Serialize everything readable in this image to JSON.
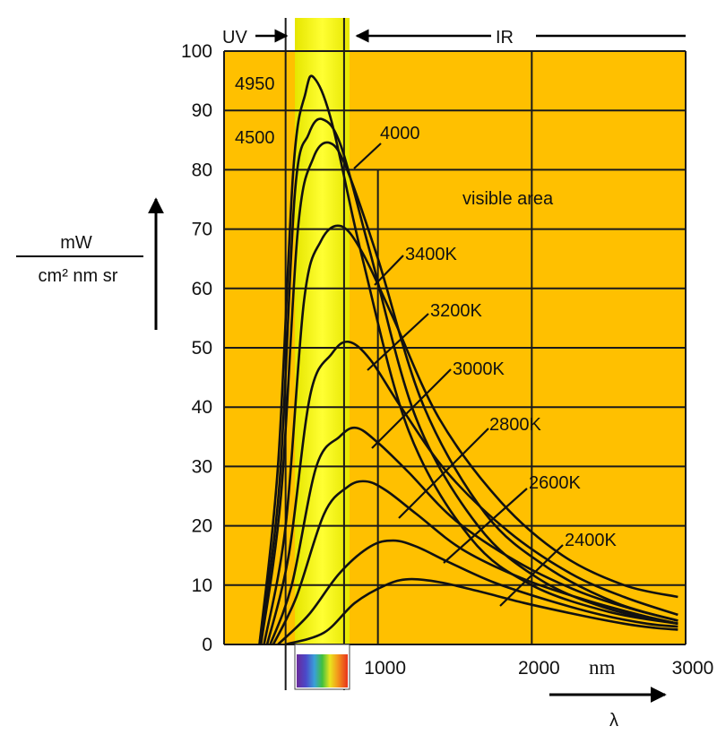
{
  "chart_data": {
    "type": "line",
    "title": "",
    "xlabel": "λ",
    "x_unit": "nm",
    "ylabel_numerator": "mW",
    "ylabel_denominator": "cm² nm sr",
    "xlim": [
      0,
      3000
    ],
    "ylim": [
      0,
      100
    ],
    "x_ticks": [
      1000,
      2000,
      3000
    ],
    "y_ticks": [
      0,
      10,
      20,
      30,
      40,
      50,
      60,
      70,
      80,
      90,
      100
    ],
    "grid": true,
    "colors": {
      "background": "#ffc000",
      "visible_band_center": "#ffff33",
      "visible_band_edge": "#e6e600",
      "line": "#111111"
    },
    "regions": {
      "uv_label": "UV",
      "ir_label": "IR",
      "visible_label": "visible area",
      "visible_range_nm": [
        400,
        780
      ]
    },
    "series": [
      {
        "name": "4950",
        "x": [
          230,
          350,
          450,
          530,
          585,
          700,
          900,
          1200,
          1600,
          2000,
          2500,
          2950
        ],
        "y": [
          0,
          30,
          80,
          93,
          95.5,
          88,
          65,
          36,
          18,
          10,
          5.5,
          3.5
        ]
      },
      {
        "name": "4500",
        "x": [
          230,
          360,
          460,
          550,
          640,
          760,
          950,
          1250,
          1650,
          2050,
          2500,
          2950
        ],
        "y": [
          0,
          27,
          76,
          86,
          88.5,
          84,
          66,
          38,
          20,
          11,
          6,
          3.5
        ]
      },
      {
        "name": "4000",
        "x": [
          240,
          370,
          480,
          580,
          690,
          800,
          1000,
          1300,
          1700,
          2100,
          2550,
          2950
        ],
        "y": [
          0,
          25,
          70,
          82,
          84.5,
          80,
          65,
          40,
          22,
          13,
          7,
          4
        ]
      },
      {
        "name": "3400K",
        "x": [
          260,
          400,
          520,
          630,
          760,
          900,
          1100,
          1400,
          1800,
          2200,
          2600,
          2950
        ],
        "y": [
          0,
          20,
          58,
          68,
          70.5,
          66,
          55,
          38,
          24,
          15,
          10,
          8
        ]
      },
      {
        "name": "3200K",
        "x": [
          280,
          420,
          560,
          700,
          810,
          950,
          1150,
          1450,
          1850,
          2250,
          2600,
          2950
        ],
        "y": [
          0,
          15,
          42,
          49,
          51,
          48,
          40,
          29,
          19,
          12,
          8,
          5
        ]
      },
      {
        "name": "3000K",
        "x": [
          300,
          440,
          600,
          750,
          860,
          1000,
          1200,
          1500,
          1900,
          2300,
          2650,
          2950
        ],
        "y": [
          0,
          10,
          30,
          35,
          36.5,
          34,
          29,
          21,
          14,
          9,
          6,
          4
        ]
      },
      {
        "name": "2800K",
        "x": [
          320,
          470,
          650,
          800,
          920,
          1050,
          1250,
          1550,
          1950,
          2350,
          2700,
          2950
        ],
        "y": [
          0,
          8,
          22,
          26.5,
          27.5,
          26,
          22,
          16,
          11,
          7.5,
          5,
          3.5
        ]
      },
      {
        "name": "2600K",
        "x": [
          350,
          550,
          750,
          950,
          1100,
          1250,
          1450,
          1750,
          2100,
          2450,
          2750,
          2950
        ],
        "y": [
          0,
          5,
          12,
          16.5,
          17.5,
          16.5,
          14,
          10.5,
          7.5,
          5,
          3.5,
          3
        ]
      },
      {
        "name": "2400K",
        "x": [
          400,
          650,
          850,
          1050,
          1200,
          1400,
          1650,
          1950,
          2300,
          2600,
          2800,
          2950
        ],
        "y": [
          0,
          2,
          7,
          10,
          11,
          10.5,
          9,
          7,
          5,
          3.5,
          2.8,
          2.5
        ]
      }
    ],
    "annotations": [
      "4950",
      "4500",
      "4000",
      "3400K",
      "3200K",
      "3000K",
      "2800K",
      "2600K",
      "2400K"
    ]
  }
}
